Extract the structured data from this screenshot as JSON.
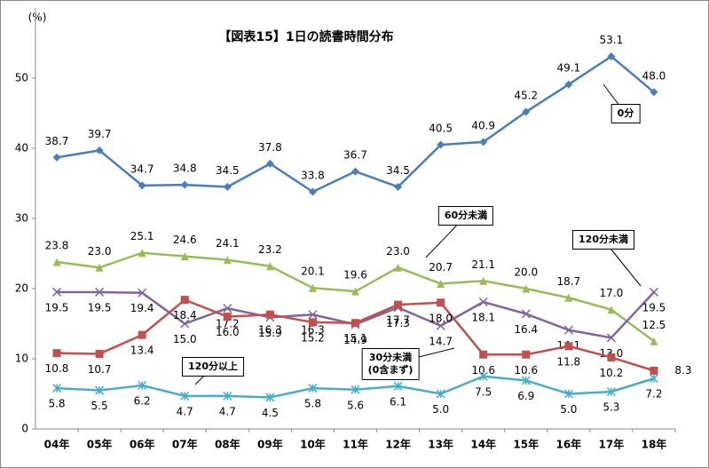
{
  "chart_data": {
    "type": "line",
    "title": "【図表15】1日の読書時間分布",
    "y_label": "(%)",
    "categories": [
      "04年",
      "05年",
      "06年",
      "07年",
      "08年",
      "09年",
      "10年",
      "11年",
      "12年",
      "13年",
      "14年",
      "15年",
      "16年",
      "17年",
      "18年"
    ],
    "ylim": [
      0,
      60
    ],
    "yticks": [
      0,
      10,
      20,
      30,
      40,
      50
    ],
    "grid": false,
    "series": [
      {
        "name": "0分",
        "color": "#4a7ebb",
        "marker": "diamond",
        "values": [
          38.7,
          39.7,
          34.7,
          34.8,
          34.5,
          37.8,
          33.8,
          36.7,
          34.5,
          40.5,
          40.9,
          45.2,
          49.1,
          53.1,
          48.0
        ],
        "value_labels": [
          "38.7",
          "39.7",
          "34.7",
          "34.8",
          "34.5",
          "37.8",
          "33.8",
          "36.7",
          "34.5",
          "40.5",
          "40.9",
          "45.2",
          "49.1",
          "53.1",
          "48.0"
        ]
      },
      {
        "name": "60分未満",
        "color": "#9bbb59",
        "marker": "triangle",
        "values": [
          23.8,
          23.0,
          25.1,
          24.6,
          24.1,
          23.2,
          20.1,
          19.6,
          23.0,
          20.7,
          21.1,
          20.0,
          18.7,
          17.0,
          12.5
        ],
        "value_labels": [
          "23.8",
          "23.0",
          "25.1",
          "24.6",
          "24.1",
          "23.2",
          "20.1",
          "19.6",
          "23.0",
          "20.7",
          "21.1",
          "20.0",
          "18.7",
          "17.0",
          "12.5"
        ]
      },
      {
        "name": "120分未満",
        "color": "#8064a2",
        "marker": "x",
        "values": [
          19.5,
          19.5,
          19.4,
          15.0,
          17.2,
          15.9,
          16.3,
          14.9,
          17.3,
          14.7,
          18.1,
          16.4,
          14.1,
          13.0,
          19.5
        ],
        "value_labels": [
          "19.5",
          "19.5",
          "19.4",
          "15.0",
          "17.2",
          "15.9",
          "16.3",
          "14.9",
          "17.3",
          "14.7",
          "18.1",
          "16.4",
          "14.1",
          "13.0",
          "19.5"
        ]
      },
      {
        "name": "30分未満\n(0含まず)",
        "color": "#c0504d",
        "marker": "square",
        "values": [
          10.8,
          10.7,
          13.4,
          18.4,
          16.0,
          16.3,
          15.2,
          15.1,
          17.7,
          18.0,
          10.6,
          10.6,
          11.8,
          10.2,
          8.3
        ],
        "value_labels": [
          "10.8",
          "10.7",
          "13.4",
          "18.4",
          "16.0",
          "16.3",
          "15.2",
          "15.1",
          "17.7",
          "18.0",
          "10.6",
          "10.6",
          "11.8",
          "10.2",
          "8.3"
        ]
      },
      {
        "name": "120分以上",
        "color": "#4bacc6",
        "marker": "star",
        "values": [
          5.8,
          5.5,
          6.2,
          4.7,
          4.7,
          4.5,
          5.8,
          5.6,
          6.1,
          5.0,
          7.5,
          6.9,
          5.0,
          5.3,
          7.2
        ],
        "value_labels": [
          "5.8",
          "5.5",
          "6.2",
          "4.7",
          "4.7",
          "4.5",
          "5.8",
          "5.6",
          "6.1",
          "5.0",
          "7.5",
          "6.9",
          "5.0",
          "5.3",
          "7.2"
        ]
      }
    ]
  }
}
